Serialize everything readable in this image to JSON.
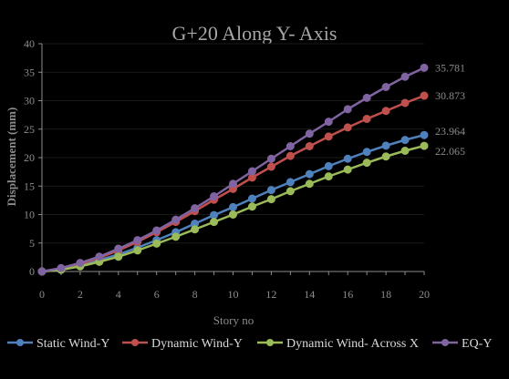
{
  "chart_data": {
    "type": "line",
    "title": "G+20 Along Y- Axis",
    "xlabel": "Story no",
    "ylabel": "Displacement (mm)",
    "xlim": [
      0,
      20
    ],
    "ylim": [
      0,
      40
    ],
    "xticks": [
      0,
      2,
      4,
      6,
      8,
      10,
      12,
      14,
      16,
      18,
      20
    ],
    "yticks": [
      0,
      5,
      10,
      15,
      20,
      25,
      30,
      35,
      40
    ],
    "x": [
      0,
      1,
      2,
      3,
      4,
      5,
      6,
      7,
      8,
      9,
      10,
      11,
      12,
      13,
      14,
      15,
      16,
      17,
      18,
      19,
      20
    ],
    "legend_position": "bottom",
    "series": [
      {
        "name": "Static Wind-Y",
        "color": "#4f81bd",
        "values": [
          0,
          0.4,
          1.1,
          2.0,
          3.0,
          4.2,
          5.5,
          6.9,
          8.4,
          9.9,
          11.3,
          12.8,
          14.3,
          15.7,
          17.1,
          18.5,
          19.8,
          21.0,
          22.1,
          23.1,
          23.964
        ],
        "end_label": "23.964"
      },
      {
        "name": "Dynamic Wind-Y",
        "color": "#c0504d",
        "values": [
          0,
          0.5,
          1.3,
          2.4,
          3.7,
          5.2,
          6.9,
          8.7,
          10.6,
          12.6,
          14.5,
          16.5,
          18.4,
          20.3,
          22.0,
          23.7,
          25.3,
          26.8,
          28.2,
          29.6,
          30.873
        ],
        "end_label": "30.873"
      },
      {
        "name": "Dynamic Wind- Across X",
        "color": "#9bbb59",
        "values": [
          0,
          0.3,
          0.9,
          1.7,
          2.6,
          3.7,
          4.9,
          6.1,
          7.4,
          8.7,
          10.0,
          11.4,
          12.7,
          14.1,
          15.4,
          16.7,
          17.9,
          19.1,
          20.2,
          21.2,
          22.065
        ],
        "end_label": "22.065"
      },
      {
        "name": "EQ-Y",
        "color": "#8064a2",
        "values": [
          0,
          0.6,
          1.5,
          2.6,
          4.0,
          5.5,
          7.2,
          9.1,
          11.1,
          13.2,
          15.4,
          17.6,
          19.8,
          22.0,
          24.2,
          26.3,
          28.5,
          30.5,
          32.4,
          34.2,
          35.781
        ],
        "end_label": "35.781"
      }
    ]
  }
}
